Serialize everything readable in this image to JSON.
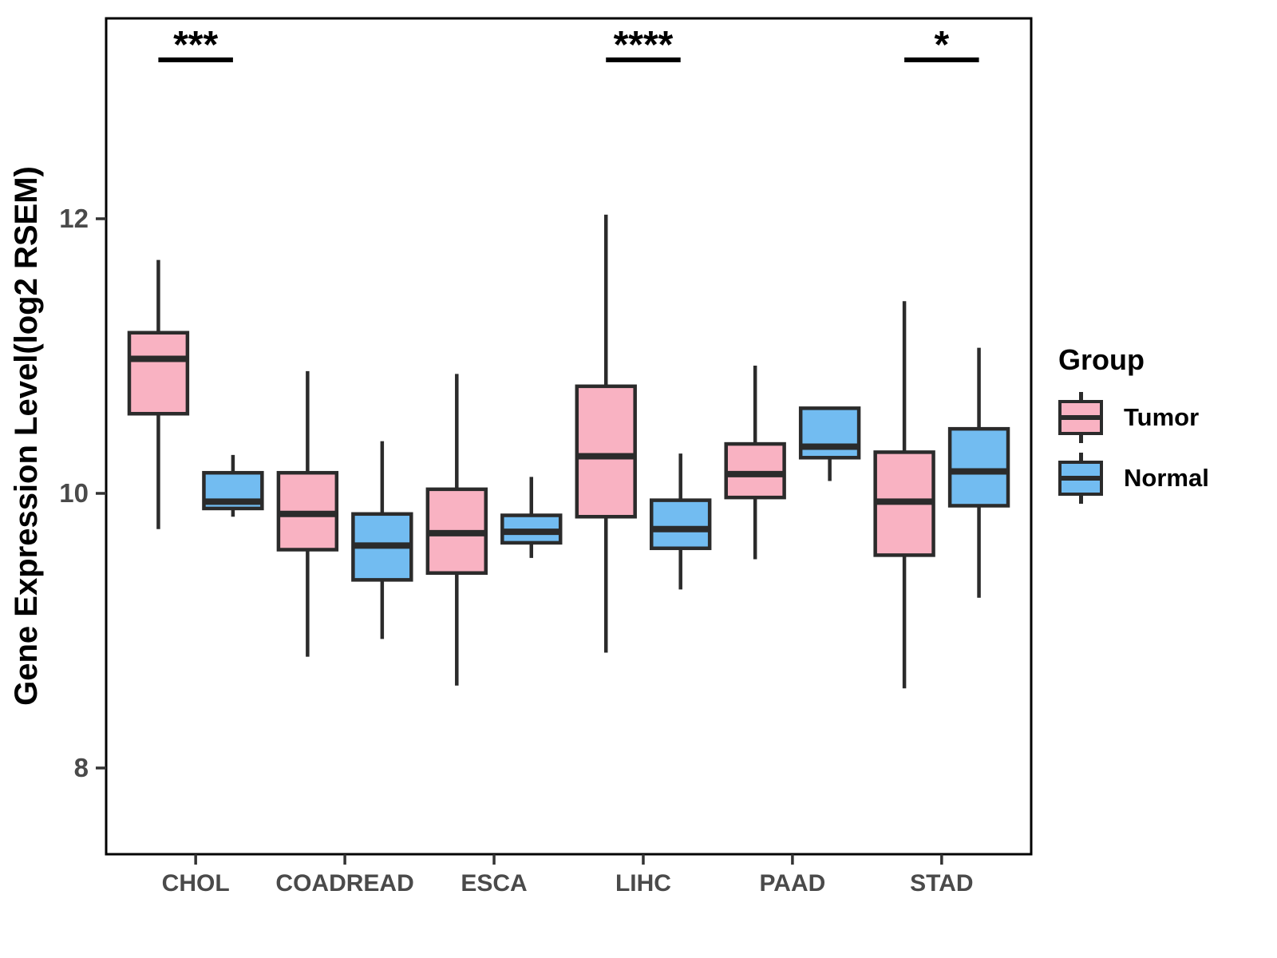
{
  "chart_data": {
    "type": "boxplot",
    "title": "",
    "xlabel": "",
    "ylabel": "Gene Expression Level(log2 RSEM)",
    "ylim": [
      7.4,
      13.45
    ],
    "yticks": [
      8,
      10,
      12
    ],
    "grid": false,
    "legend": {
      "title": "Group",
      "position": "right"
    },
    "categories": [
      "CHOL",
      "COADREAD",
      "ESCA",
      "LIHC",
      "PAAD",
      "STAD"
    ],
    "series": [
      {
        "name": "Tumor",
        "color": "#F9B2C2",
        "boxes": [
          {
            "category": "CHOL",
            "min": 9.74,
            "q1": 10.58,
            "median": 10.98,
            "q3": 11.17,
            "max": 11.7
          },
          {
            "category": "COADREAD",
            "min": 8.81,
            "q1": 9.59,
            "median": 9.85,
            "q3": 10.15,
            "max": 10.89
          },
          {
            "category": "ESCA",
            "min": 8.6,
            "q1": 9.42,
            "median": 9.71,
            "q3": 10.03,
            "max": 10.87
          },
          {
            "category": "LIHC",
            "min": 8.84,
            "q1": 9.83,
            "median": 10.27,
            "q3": 10.78,
            "max": 12.03
          },
          {
            "category": "PAAD",
            "min": 9.52,
            "q1": 9.97,
            "median": 10.14,
            "q3": 10.36,
            "max": 10.93
          },
          {
            "category": "STAD",
            "min": 8.58,
            "q1": 9.55,
            "median": 9.94,
            "q3": 10.3,
            "max": 11.4
          }
        ]
      },
      {
        "name": "Normal",
        "color": "#72BCF1",
        "boxes": [
          {
            "category": "CHOL",
            "min": 9.83,
            "q1": 9.89,
            "median": 9.94,
            "q3": 10.15,
            "max": 10.28
          },
          {
            "category": "COADREAD",
            "min": 8.94,
            "q1": 9.37,
            "median": 9.62,
            "q3": 9.85,
            "max": 10.38
          },
          {
            "category": "ESCA",
            "min": 9.53,
            "q1": 9.64,
            "median": 9.72,
            "q3": 9.84,
            "max": 10.12
          },
          {
            "category": "LIHC",
            "min": 9.3,
            "q1": 9.6,
            "median": 9.74,
            "q3": 9.95,
            "max": 10.29
          },
          {
            "category": "PAAD",
            "min": 10.09,
            "q1": 10.26,
            "median": 10.34,
            "q3": 10.62,
            "max": 10.62
          },
          {
            "category": "STAD",
            "min": 9.24,
            "q1": 9.91,
            "median": 10.16,
            "q3": 10.47,
            "max": 11.06
          }
        ]
      }
    ],
    "significance": [
      {
        "category": "CHOL",
        "label": "***"
      },
      {
        "category": "LIHC",
        "label": "****"
      },
      {
        "category": "STAD",
        "label": "*"
      }
    ],
    "style": {
      "stroke_color": "#2B2B2B",
      "panel_border_color": "#000000",
      "tick_label_color": "#4A4A4A",
      "axis_title_color": "#000000"
    }
  }
}
